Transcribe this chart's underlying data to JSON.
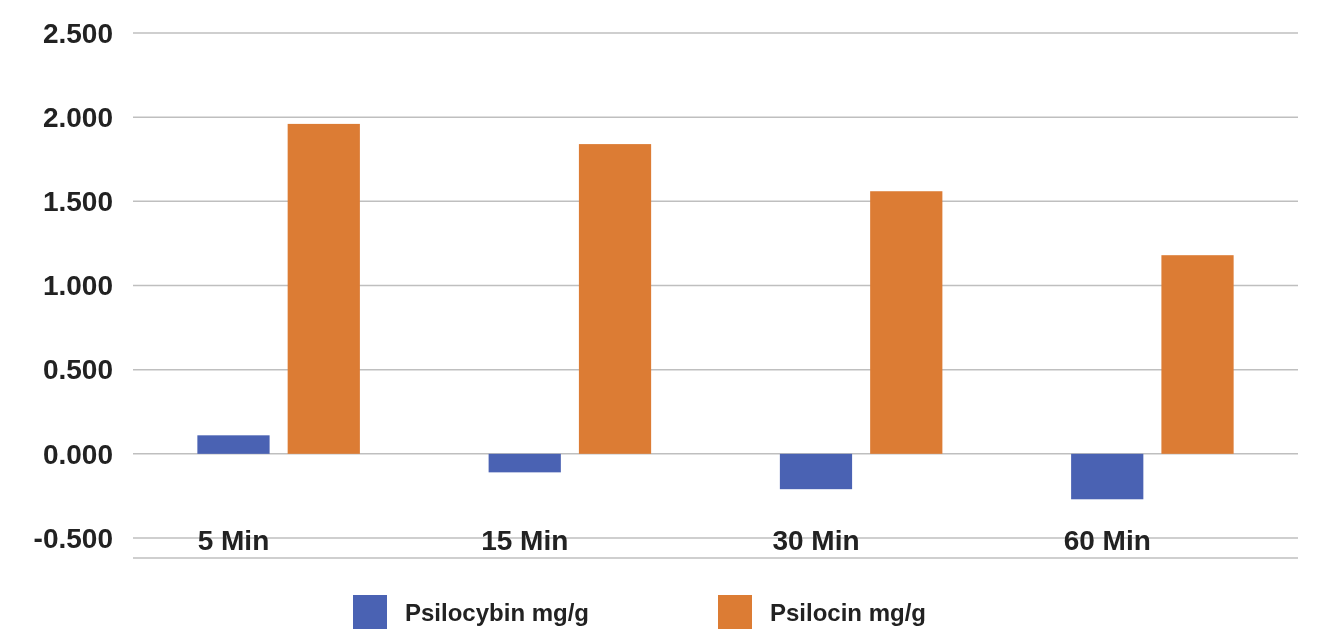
{
  "chart_data": {
    "type": "bar",
    "categories": [
      "5 Min",
      "15 Min",
      "30 Min",
      "60 Min"
    ],
    "series": [
      {
        "name": "Psilocybin mg/g",
        "color": "#4a62b3",
        "values": [
          0.11,
          -0.11,
          -0.21,
          -0.27
        ]
      },
      {
        "name": "Psilocin mg/g",
        "color": "#dc7c34",
        "values": [
          1.96,
          1.84,
          1.56,
          1.18
        ]
      }
    ],
    "ylim": [
      -0.5,
      2.5
    ],
    "yticks": [
      {
        "value": -0.5,
        "label": "-0.500"
      },
      {
        "value": 0,
        "label": "0.000"
      },
      {
        "value": 0.5,
        "label": "0.500"
      },
      {
        "value": 1,
        "label": "1.000"
      },
      {
        "value": 1.5,
        "label": "1.500"
      },
      {
        "value": 2,
        "label": "2.000"
      },
      {
        "value": 2.5,
        "label": "2.500"
      }
    ],
    "grid": "y",
    "legend": "bottom"
  }
}
